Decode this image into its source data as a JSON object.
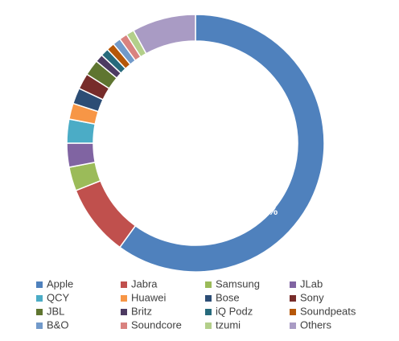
{
  "chart_data": {
    "type": "donut",
    "categories": [
      "Apple",
      "Jabra",
      "Samsung",
      "JLab",
      "QCY",
      "Huawei",
      "Bose",
      "Sony",
      "JBL",
      "Britz",
      "iQ Podz",
      "Soundpeats",
      "B&O",
      "Soundcore",
      "tzumi",
      "Others"
    ],
    "values": [
      60,
      9,
      3,
      3,
      3,
      2,
      2,
      2,
      2,
      1,
      1,
      1,
      1,
      1,
      1,
      8
    ],
    "value_labels": [
      "60%",
      null,
      null,
      null,
      null,
      null,
      null,
      null,
      null,
      null,
      null,
      null,
      null,
      null,
      null,
      null
    ],
    "colors": [
      "#4f81bd",
      "#c0504d",
      "#9bbb59",
      "#8064a2",
      "#4bacc6",
      "#f79646",
      "#2c4d75",
      "#772c2a",
      "#5f7530",
      "#4d3b62",
      "#276a7c",
      "#b65708",
      "#729aca",
      "#d9827f",
      "#b3cf8a",
      "#a99bc4"
    ],
    "legend": "bottom"
  }
}
